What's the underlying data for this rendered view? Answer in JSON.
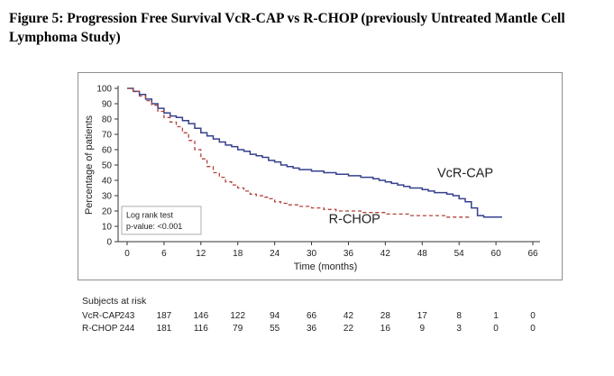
{
  "figure": {
    "title": "Figure 5: Progression Free Survival VcR-CAP vs R-CHOP (previously Untreated Mantle Cell Lymphoma Study)"
  },
  "chart_data": {
    "type": "line",
    "subtype": "kaplan-meier-step",
    "title": "Progression Free Survival VcR-CAP vs R-CHOP",
    "xlabel": "Time (months)",
    "ylabel": "Percentage of patients",
    "xlim": [
      0,
      66
    ],
    "ylim": [
      0,
      100
    ],
    "xticks": [
      0,
      6,
      12,
      18,
      24,
      30,
      36,
      42,
      48,
      54,
      60,
      66
    ],
    "yticks": [
      0,
      10,
      20,
      30,
      40,
      50,
      60,
      70,
      80,
      90,
      100
    ],
    "grid": false,
    "legend_position": "inline-labels",
    "annotation": {
      "lines": [
        "Log rank test",
        "p-value: <0.001"
      ]
    },
    "series": [
      {
        "name": "VcR-CAP",
        "color": "#35408d",
        "style": "solid",
        "label_pos": [
          55,
          42
        ],
        "points": [
          [
            0,
            100
          ],
          [
            1,
            98
          ],
          [
            2,
            96
          ],
          [
            3,
            93
          ],
          [
            4,
            90
          ],
          [
            5,
            87
          ],
          [
            6,
            84
          ],
          [
            7,
            82
          ],
          [
            8,
            81
          ],
          [
            9,
            79
          ],
          [
            10,
            77
          ],
          [
            11,
            74
          ],
          [
            12,
            71
          ],
          [
            13,
            69
          ],
          [
            14,
            67
          ],
          [
            15,
            65
          ],
          [
            16,
            63
          ],
          [
            17,
            62
          ],
          [
            18,
            60
          ],
          [
            19,
            59
          ],
          [
            20,
            57
          ],
          [
            21,
            56
          ],
          [
            22,
            55
          ],
          [
            23,
            53
          ],
          [
            24,
            52
          ],
          [
            25,
            50
          ],
          [
            26,
            49
          ],
          [
            27,
            48
          ],
          [
            28,
            47
          ],
          [
            30,
            46
          ],
          [
            32,
            45
          ],
          [
            34,
            44
          ],
          [
            36,
            43
          ],
          [
            38,
            42
          ],
          [
            40,
            41
          ],
          [
            41,
            40
          ],
          [
            42,
            39
          ],
          [
            43,
            38
          ],
          [
            44,
            37
          ],
          [
            45,
            36
          ],
          [
            46,
            35
          ],
          [
            48,
            34
          ],
          [
            49,
            33
          ],
          [
            50,
            32
          ],
          [
            52,
            31
          ],
          [
            53,
            30
          ],
          [
            54,
            28
          ],
          [
            55,
            26
          ],
          [
            56,
            22
          ],
          [
            57,
            17
          ],
          [
            58,
            16
          ],
          [
            61,
            16
          ]
        ]
      },
      {
        "name": "R-CHOP",
        "color": "#b2423a",
        "style": "dashed",
        "label_pos": [
          37,
          12
        ],
        "points": [
          [
            0,
            100
          ],
          [
            1,
            98
          ],
          [
            2,
            95
          ],
          [
            3,
            92
          ],
          [
            4,
            89
          ],
          [
            5,
            85
          ],
          [
            6,
            81
          ],
          [
            7,
            78
          ],
          [
            8,
            75
          ],
          [
            9,
            71
          ],
          [
            10,
            66
          ],
          [
            11,
            60
          ],
          [
            12,
            54
          ],
          [
            13,
            49
          ],
          [
            14,
            45
          ],
          [
            15,
            42
          ],
          [
            16,
            39
          ],
          [
            17,
            37
          ],
          [
            18,
            35
          ],
          [
            19,
            33
          ],
          [
            20,
            31
          ],
          [
            21,
            30
          ],
          [
            22,
            29
          ],
          [
            23,
            28
          ],
          [
            24,
            26
          ],
          [
            25,
            25
          ],
          [
            26,
            24
          ],
          [
            28,
            23
          ],
          [
            30,
            22
          ],
          [
            32,
            21
          ],
          [
            34,
            20
          ],
          [
            36,
            20
          ],
          [
            38,
            19
          ],
          [
            40,
            19
          ],
          [
            42,
            18
          ],
          [
            44,
            18
          ],
          [
            46,
            17
          ],
          [
            48,
            17
          ],
          [
            50,
            17
          ],
          [
            52,
            16
          ],
          [
            54,
            16
          ],
          [
            56,
            16
          ]
        ]
      }
    ],
    "risk_table": {
      "header": "Subjects at risk",
      "times": [
        0,
        6,
        12,
        18,
        24,
        30,
        36,
        42,
        48,
        54,
        60,
        66
      ],
      "rows": [
        {
          "name": "VcR-CAP",
          "values": [
            243,
            187,
            146,
            122,
            94,
            66,
            42,
            28,
            17,
            8,
            1,
            0
          ]
        },
        {
          "name": "R-CHOP",
          "values": [
            244,
            181,
            116,
            79,
            55,
            36,
            22,
            16,
            9,
            3,
            0,
            0
          ]
        }
      ]
    }
  }
}
